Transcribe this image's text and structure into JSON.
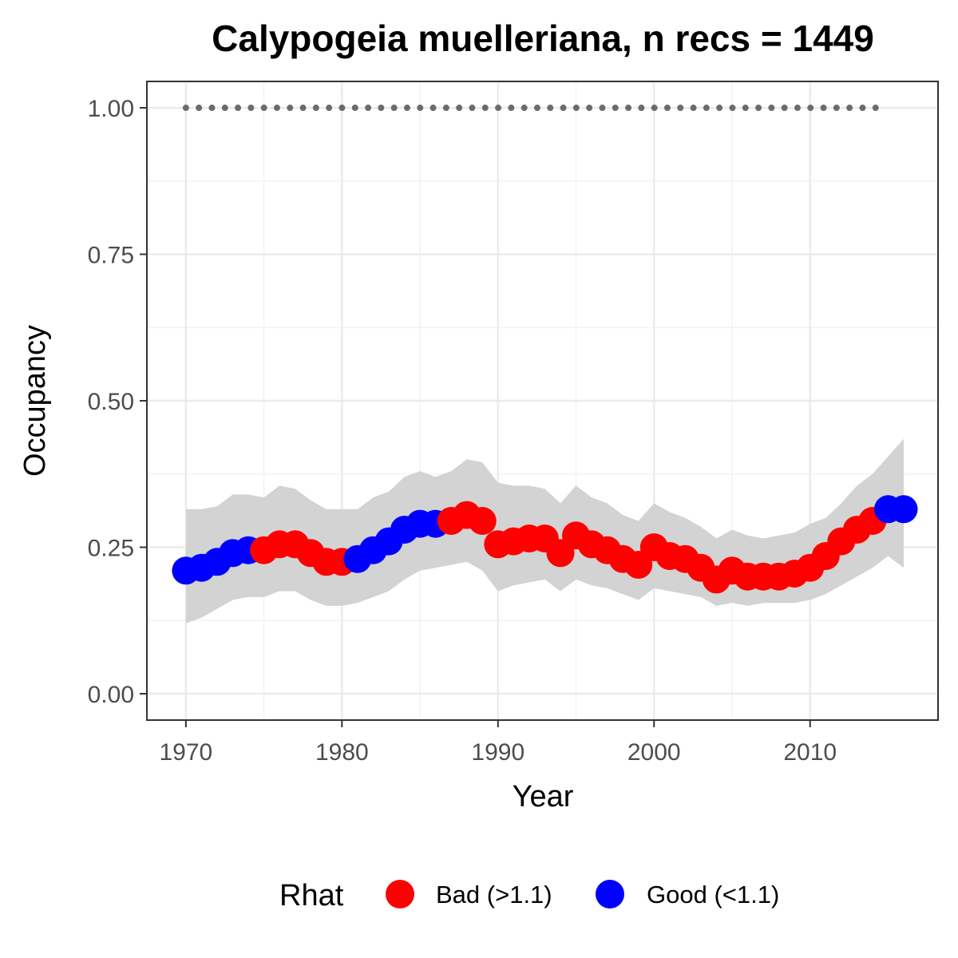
{
  "chart_data": {
    "type": "line",
    "title": "Calypogeia muelleriana, n recs = 1449",
    "xlabel": "Year",
    "ylabel": "Occupancy",
    "xlim": [
      1967.5,
      2018.2
    ],
    "ylim": [
      -0.045,
      1.045
    ],
    "x_ticks": [
      1970,
      1980,
      1990,
      2000,
      2010
    ],
    "x_tick_labels": [
      "1970",
      "1980",
      "1990",
      "2000",
      "2010"
    ],
    "y_ticks": [
      0,
      0.25,
      0.5,
      0.75,
      1.0
    ],
    "y_tick_labels": [
      "0.00",
      "0.25",
      "0.50",
      "0.75",
      "1.00"
    ],
    "grid": true,
    "legend": {
      "title": "Rhat",
      "position": "bottom",
      "entries": [
        {
          "label": "Bad (>1.1)",
          "color": "#ff0000"
        },
        {
          "label": "Good (<1.1)",
          "color": "#0000ff"
        }
      ]
    },
    "reference_line": {
      "y": 1.0,
      "x_from": 1970,
      "x_to": 2015,
      "style": "dotted",
      "color": "#6b6b6b"
    },
    "ribbon_color": "#d3d3d3",
    "series": [
      {
        "x": [
          1970,
          1971,
          1972,
          1973,
          1974,
          1975,
          1976,
          1977,
          1978,
          1979,
          1980,
          1981,
          1982,
          1983,
          1984,
          1985,
          1986,
          1987,
          1988,
          1989,
          1990,
          1991,
          1992,
          1993,
          1994,
          1995,
          1996,
          1997,
          1998,
          1999,
          2000,
          2001,
          2002,
          2003,
          2004,
          2005,
          2006,
          2007,
          2008,
          2009,
          2010,
          2011,
          2012,
          2013,
          2014,
          2015,
          2016
        ],
        "y": [
          0.21,
          0.215,
          0.225,
          0.24,
          0.245,
          0.245,
          0.255,
          0.255,
          0.24,
          0.225,
          0.225,
          0.23,
          0.245,
          0.26,
          0.28,
          0.29,
          0.29,
          0.295,
          0.305,
          0.295,
          0.255,
          0.26,
          0.265,
          0.265,
          0.24,
          0.27,
          0.255,
          0.245,
          0.23,
          0.22,
          0.25,
          0.235,
          0.23,
          0.215,
          0.195,
          0.21,
          0.2,
          0.2,
          0.2,
          0.205,
          0.215,
          0.235,
          0.26,
          0.28,
          0.295,
          0.315,
          0.315
        ],
        "lower": [
          0.12,
          0.13,
          0.145,
          0.16,
          0.165,
          0.165,
          0.175,
          0.175,
          0.16,
          0.15,
          0.15,
          0.155,
          0.165,
          0.175,
          0.195,
          0.21,
          0.215,
          0.22,
          0.225,
          0.21,
          0.175,
          0.185,
          0.19,
          0.195,
          0.175,
          0.195,
          0.185,
          0.18,
          0.17,
          0.16,
          0.18,
          0.175,
          0.17,
          0.165,
          0.15,
          0.155,
          0.15,
          0.155,
          0.155,
          0.155,
          0.16,
          0.17,
          0.185,
          0.2,
          0.215,
          0.235,
          0.215
        ],
        "upper": [
          0.315,
          0.315,
          0.32,
          0.34,
          0.34,
          0.335,
          0.355,
          0.35,
          0.33,
          0.315,
          0.315,
          0.315,
          0.335,
          0.345,
          0.37,
          0.38,
          0.37,
          0.38,
          0.4,
          0.395,
          0.36,
          0.355,
          0.355,
          0.35,
          0.325,
          0.355,
          0.335,
          0.325,
          0.305,
          0.295,
          0.325,
          0.31,
          0.3,
          0.285,
          0.265,
          0.28,
          0.27,
          0.265,
          0.27,
          0.275,
          0.29,
          0.3,
          0.325,
          0.355,
          0.375,
          0.405,
          0.435
        ],
        "rhat": [
          "Good",
          "Good",
          "Good",
          "Good",
          "Good",
          "Bad",
          "Bad",
          "Bad",
          "Bad",
          "Bad",
          "Bad",
          "Good",
          "Good",
          "Good",
          "Good",
          "Good",
          "Good",
          "Bad",
          "Bad",
          "Bad",
          "Bad",
          "Bad",
          "Bad",
          "Bad",
          "Bad",
          "Bad",
          "Bad",
          "Bad",
          "Bad",
          "Bad",
          "Bad",
          "Bad",
          "Bad",
          "Bad",
          "Bad",
          "Bad",
          "Bad",
          "Bad",
          "Bad",
          "Bad",
          "Bad",
          "Bad",
          "Bad",
          "Bad",
          "Bad",
          "Good",
          "Good"
        ]
      }
    ]
  }
}
